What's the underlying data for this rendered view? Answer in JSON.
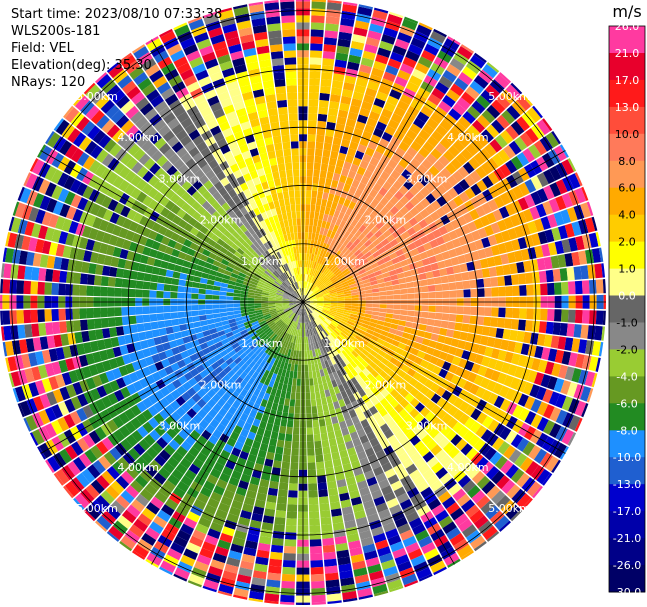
{
  "header": {
    "start_time": "Start time: 2023/08/10 07:33:38",
    "station": "WLS200s-181",
    "field": "Field: VEL",
    "elevation": "Elevation(deg): 35.30",
    "nrays": "NRays: 120"
  },
  "chart_data": {
    "type": "heatmap",
    "projection": "polar-ppi",
    "nrays": 120,
    "range_rings_km": [
      1.0,
      2.0,
      3.0,
      4.0,
      5.0
    ],
    "range_labels": [
      "1.00km",
      "2.00km",
      "3.00km",
      "4.00km",
      "5.00km"
    ],
    "max_range_km": 5.2,
    "spokes_deg": [
      0,
      30,
      60,
      90,
      120,
      150,
      180,
      210,
      240,
      270,
      300,
      330
    ],
    "colorbar": {
      "unit": "m/s",
      "tick_labels": [
        "26.0",
        "21.0",
        "17.0",
        "13.0",
        "10.0",
        "8.0",
        "6.0",
        "4.0",
        "2.0",
        "1.0",
        "0.0",
        "-1.0",
        "-2.0",
        "-4.0",
        "-6.0",
        "-8.0",
        "-10.0",
        "-13.0",
        "-17.0",
        "-21.0",
        "-26.0",
        "-30.0"
      ],
      "colors": [
        "#ff3aa0",
        "#e8002c",
        "#ff1a1a",
        "#ff4d3a",
        "#ff7a5a",
        "#ff9955",
        "#ffaa00",
        "#ffcc00",
        "#ffff00",
        "#ffff88",
        "#666666",
        "#888888",
        "#99cc33",
        "#669922",
        "#228b22",
        "#1e90ff",
        "#1f5fd0",
        "#0000cd",
        "#0000aa",
        "#000088",
        "#000066"
      ]
    },
    "velocity_pattern": {
      "outbound_azimuth_deg": 60,
      "inbound_azimuth_deg": 240,
      "peak_outbound_ms": 8.0,
      "peak_inbound_ms": -10.0,
      "noise_beyond_km": 3.9
    },
    "colors": {
      "outbound": "#ff9955",
      "inbound": "#228b22",
      "near_zero": "#888888"
    }
  }
}
